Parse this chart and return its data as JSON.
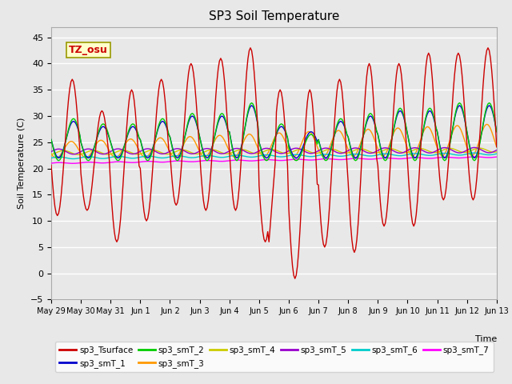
{
  "title": "SP3 Soil Temperature",
  "ylabel": "Soil Temperature (C)",
  "xlabel_text": "Time",
  "ylim": [
    -5,
    47
  ],
  "xlim": [
    0,
    360
  ],
  "annotation": "TZ_osu",
  "annotation_color": "#CC0000",
  "annotation_bg": "#FFFFCC",
  "annotation_border": "#999900",
  "tick_labels": [
    "May 29",
    "May 30",
    "May 31",
    "Jun 1",
    "Jun 2",
    "Jun 3",
    "Jun 4",
    "Jun 5",
    "Jun 6",
    "Jun 7",
    "Jun 8",
    "Jun 9",
    "Jun 10",
    "Jun 11",
    "Jun 12",
    "Jun 13"
  ],
  "tick_positions": [
    0,
    24,
    48,
    72,
    96,
    120,
    144,
    168,
    192,
    216,
    240,
    264,
    288,
    312,
    336,
    360
  ],
  "bg_color": "#E8E8E8",
  "plot_bg": "#E8E8E8",
  "grid_color": "#FFFFFF",
  "series_colors": {
    "sp3_Tsurface": "#CC0000",
    "sp3_smT_1": "#0000CC",
    "sp3_smT_2": "#00CC00",
    "sp3_smT_3": "#FF9900",
    "sp3_smT_4": "#CCCC00",
    "sp3_smT_5": "#9900CC",
    "sp3_smT_6": "#00CCCC",
    "sp3_smT_7": "#FF00FF"
  },
  "legend_order": [
    "sp3_Tsurface",
    "sp3_smT_1",
    "sp3_smT_2",
    "sp3_smT_3",
    "sp3_smT_4",
    "sp3_smT_5",
    "sp3_smT_6",
    "sp3_smT_7"
  ]
}
